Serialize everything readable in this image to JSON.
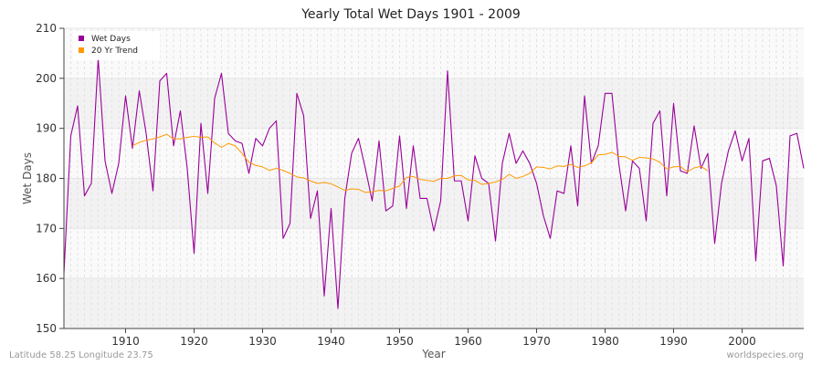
{
  "footer": {
    "left": "Latitude 58.25 Longitude 23.75",
    "right": "worldspecies.org"
  },
  "colors": {
    "wet_days": "#990099",
    "trend": "#ff9900",
    "band_light": "#f2f2f2",
    "band_white": "#fafafa",
    "axis": "#444444"
  },
  "chart_data": {
    "type": "line",
    "title": "Yearly Total Wet Days 1901 - 2009",
    "xlabel": "Year",
    "ylabel": "Wet Days",
    "xlim": [
      1901,
      2009
    ],
    "ylim": [
      150,
      210
    ],
    "xticks": [
      1910,
      1920,
      1930,
      1940,
      1950,
      1960,
      1970,
      1980,
      1990,
      2000
    ],
    "yticks": [
      150,
      160,
      170,
      180,
      190,
      200,
      210
    ],
    "grid": true,
    "legend": "top-left",
    "series": [
      {
        "name": "Wet Days",
        "color": "#990099",
        "x_start": 1901,
        "values": [
          161,
          188.5,
          194.5,
          176.5,
          179,
          204,
          183.5,
          177,
          183,
          196.5,
          186,
          197.5,
          189,
          177.5,
          199.5,
          201,
          186.5,
          193.5,
          182,
          165,
          191,
          177,
          196,
          201,
          189,
          187.5,
          187,
          181,
          188,
          186.5,
          190,
          191.5,
          168,
          171,
          197,
          192.5,
          172,
          177.5,
          156.5,
          174,
          154,
          176,
          185,
          188,
          182,
          175.5,
          187.5,
          173.5,
          174.5,
          188.5,
          174,
          186.5,
          176,
          176,
          169.5,
          175.5,
          201.5,
          179.5,
          179.5,
          171.5,
          184.5,
          180,
          179,
          167.5,
          183,
          189,
          183,
          185.5,
          183,
          179,
          172.5,
          168,
          177.5,
          177,
          186.5,
          174.5,
          196.5,
          183,
          186.5,
          197,
          197,
          183,
          173.5,
          183.5,
          182,
          171.5,
          191,
          193.5,
          176.5,
          195,
          181.5,
          181,
          190.5,
          182,
          185,
          167,
          179,
          185.5,
          189.5,
          183.5,
          188,
          163.5,
          183.5,
          184,
          178.5,
          162.5,
          188.5,
          189,
          182
        ]
      },
      {
        "name": "20 Yr Trend",
        "color": "#ff9900",
        "x_start": 1911,
        "values": [
          186.5,
          187.2,
          187.6,
          187.9,
          188.3,
          188.8,
          187.9,
          187.9,
          188.2,
          188.4,
          188.2,
          188.3,
          187.1,
          186.2,
          187,
          186.5,
          185,
          183.2,
          182.6,
          182.3,
          181.6,
          182,
          181.6,
          181,
          180.3,
          180.1,
          179.5,
          179,
          179.2,
          178.9,
          178.3,
          177.6,
          177.9,
          177.8,
          177.2,
          177.3,
          177.6,
          177.5,
          178,
          178.5,
          180.2,
          180.4,
          179.8,
          179.6,
          179.4,
          180,
          180,
          180.5,
          180.6,
          179.7,
          179.6,
          178.8,
          179,
          179.3,
          179.8,
          180.8,
          180,
          180.4,
          181,
          182.3,
          182.2,
          181.9,
          182.5,
          182.4,
          182.8,
          182.2,
          182.5,
          183.1,
          184.7,
          184.8,
          185.2,
          184.4,
          184.3,
          183.6,
          184.2,
          184.1,
          183.9,
          183.2,
          181.9,
          182.3,
          182.4,
          181.3,
          182.1,
          182.4,
          181.5
        ]
      }
    ]
  }
}
